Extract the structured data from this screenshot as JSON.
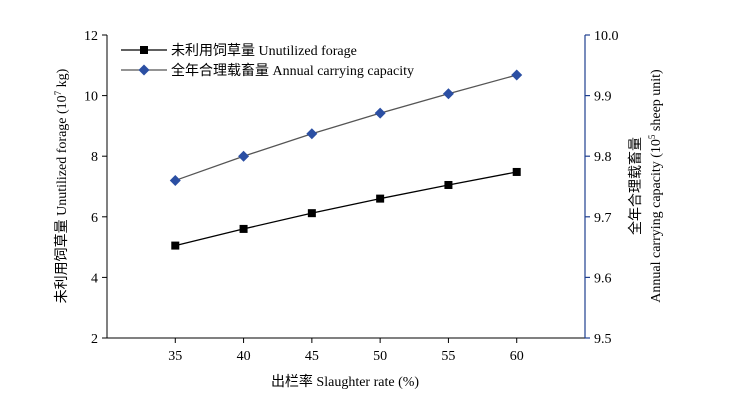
{
  "chart_data": {
    "type": "line",
    "xlabel": "出栏率 Slaughter rate (%)",
    "ylabel_left": {
      "main": "未利用饲草量 Unutilized forage (10",
      "sup": "7",
      "end": " kg)"
    },
    "ylabel_right": {
      "line1": "全年合理载畜量",
      "line2_main": "Annual carrying capacity (10",
      "line2_sup": "5",
      "line2_end": " sheep unit)"
    },
    "x": [
      35,
      40,
      45,
      50,
      55,
      60
    ],
    "xlim": [
      30,
      65
    ],
    "x_ticks": [
      "35",
      "40",
      "45",
      "50",
      "55",
      "60"
    ],
    "ylim_left": [
      2,
      12
    ],
    "y_ticks_left": [
      "2",
      "4",
      "6",
      "8",
      "10",
      "12"
    ],
    "ylim_right": [
      9.5,
      10.0
    ],
    "y_ticks_right": [
      "9.5",
      "9.6",
      "9.7",
      "9.8",
      "9.9",
      "10.0"
    ],
    "grid": false,
    "legend_position": "top-left",
    "series": [
      {
        "name": "未利用饲草量 Unutilized forage",
        "axis": "left",
        "marker": "square",
        "marker_color": "#000000",
        "line_color": "#000000",
        "values": [
          5.05,
          5.6,
          6.12,
          6.6,
          7.05,
          7.48
        ]
      },
      {
        "name": "全年合理载畜量 Annual carrying capacity",
        "axis": "right",
        "marker": "diamond",
        "marker_color": "#2b4fa3",
        "line_color": "#555555",
        "values": [
          9.76,
          9.8,
          9.837,
          9.871,
          9.903,
          9.934
        ]
      }
    ],
    "colors": {
      "axis_left": "#000000",
      "axis_right": "#1f3f8f"
    }
  }
}
